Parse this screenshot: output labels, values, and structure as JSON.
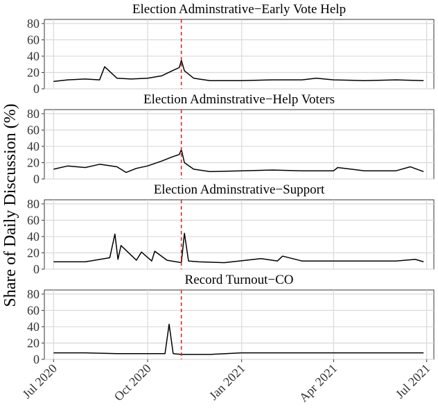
{
  "chart_data": {
    "type": "line",
    "ylabel": "Share of Daily Discussion (%)",
    "ylim": [
      0,
      85
    ],
    "yticks": [
      0,
      20,
      40,
      60,
      80
    ],
    "xlim": [
      "2020-06-22",
      "2021-07-08"
    ],
    "xticks": [
      "2020-07-01",
      "2020-10-01",
      "2021-01-01",
      "2021-04-01",
      "2021-07-01"
    ],
    "xtick_labels": [
      "Jul 2020",
      "Oct 2020",
      "Jan 2021",
      "Apr 2021",
      "Jul 2021"
    ],
    "reference_line": {
      "date": "2020-11-03",
      "color": "#d62728",
      "style": "dashed"
    },
    "grid": true,
    "panels": [
      {
        "title": "Election Adminstrative−Early Vote Help",
        "series": [
          {
            "x": [
              "2020-07-01",
              "2020-07-15",
              "2020-08-01",
              "2020-08-15",
              "2020-08-20",
              "2020-09-01",
              "2020-09-15",
              "2020-10-01",
              "2020-10-15",
              "2020-10-25",
              "2020-11-01",
              "2020-11-03",
              "2020-11-06",
              "2020-11-15",
              "2020-12-01",
              "2021-01-01",
              "2021-02-01",
              "2021-03-01",
              "2021-03-15",
              "2021-04-01",
              "2021-05-01",
              "2021-06-01",
              "2021-06-28"
            ],
            "y": [
              9,
              11,
              12,
              11,
              27,
              13,
              12,
              13,
              16,
              22,
              26,
              35,
              22,
              13,
              10,
              10,
              11,
              11,
              13,
              11,
              10,
              11,
              10
            ]
          }
        ]
      },
      {
        "title": "Election Adminstrative−Help Voters",
        "series": [
          {
            "x": [
              "2020-07-01",
              "2020-07-15",
              "2020-08-01",
              "2020-08-15",
              "2020-09-01",
              "2020-09-10",
              "2020-09-20",
              "2020-10-01",
              "2020-10-15",
              "2020-10-25",
              "2020-11-01",
              "2020-11-03",
              "2020-11-06",
              "2020-11-15",
              "2020-12-01",
              "2021-01-01",
              "2021-02-01",
              "2021-03-01",
              "2021-04-01",
              "2021-04-05",
              "2021-05-01",
              "2021-06-01",
              "2021-06-15",
              "2021-06-28"
            ],
            "y": [
              12,
              16,
              14,
              18,
              15,
              8,
              13,
              16,
              22,
              27,
              30,
              36,
              20,
              12,
              9,
              10,
              11,
              10,
              10,
              14,
              10,
              10,
              15,
              9
            ]
          }
        ]
      },
      {
        "title": "Election Adminstrative−Support",
        "series": [
          {
            "x": [
              "2020-07-01",
              "2020-08-01",
              "2020-08-25",
              "2020-08-30",
              "2020-09-02",
              "2020-09-05",
              "2020-09-20",
              "2020-09-25",
              "2020-10-05",
              "2020-10-08",
              "2020-10-20",
              "2020-11-03",
              "2020-11-06",
              "2020-11-10",
              "2020-11-20",
              "2020-12-15",
              "2021-01-20",
              "2021-02-05",
              "2021-02-10",
              "2021-03-01",
              "2021-04-01",
              "2021-05-01",
              "2021-06-01",
              "2021-06-20",
              "2021-06-28"
            ],
            "y": [
              9,
              9,
              14,
              43,
              12,
              29,
              11,
              21,
              10,
              22,
              11,
              8,
              44,
              10,
              9,
              8,
              13,
              10,
              16,
              10,
              10,
              10,
              10,
              12,
              9
            ]
          }
        ]
      },
      {
        "title": "Record Turnout−CO",
        "series": [
          {
            "x": [
              "2020-07-01",
              "2020-08-01",
              "2020-09-01",
              "2020-10-01",
              "2020-10-18",
              "2020-10-22",
              "2020-10-26",
              "2020-11-03",
              "2020-12-01",
              "2021-01-01",
              "2021-02-01",
              "2021-03-01",
              "2021-04-01",
              "2021-05-01",
              "2021-06-01",
              "2021-06-28"
            ],
            "y": [
              8,
              8,
              7,
              7,
              7,
              43,
              7,
              6,
              6,
              8,
              8,
              8,
              8,
              8,
              8,
              8
            ]
          }
        ]
      }
    ]
  }
}
